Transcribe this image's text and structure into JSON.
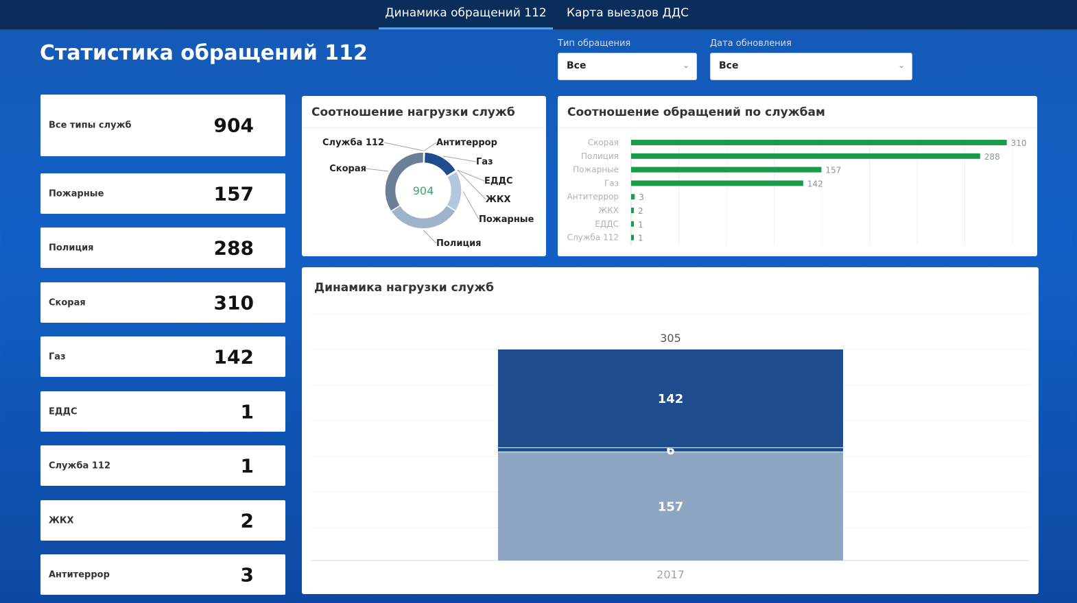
{
  "tabs": [
    {
      "label": "Динамика обращений 112",
      "active": true
    },
    {
      "label": "Карта выездов ДДС",
      "active": false
    }
  ],
  "page_title": "Статистика обращений 112",
  "filters": {
    "type": {
      "label": "Тип обращения",
      "value": "Все"
    },
    "date": {
      "label": "Дата обновления",
      "value": "Все"
    }
  },
  "stats": [
    {
      "label": "Все типы служб",
      "value": "904"
    },
    {
      "label": "Пожарные",
      "value": "157"
    },
    {
      "label": "Полиция",
      "value": "288"
    },
    {
      "label": "Скорая",
      "value": "310"
    },
    {
      "label": "Газ",
      "value": "142"
    },
    {
      "label": "ЕДДС",
      "value": "1"
    },
    {
      "label": "Служба 112",
      "value": "1"
    },
    {
      "label": "ЖКХ",
      "value": "2"
    },
    {
      "label": "Антитеррор",
      "value": "3"
    }
  ],
  "colors": {
    "accent_green": "#1a9a4a",
    "dark_blue": "#1f4c8f",
    "light_blue": "#8ea5c4",
    "nav_bg": "#0b2d5c"
  },
  "chart_data": [
    {
      "type": "pie",
      "title": "Соотношение нагрузки служб",
      "center_label": "904",
      "slices": [
        {
          "label": "Скорая",
          "value": 310,
          "color": "#6b8098"
        },
        {
          "label": "Полиция",
          "value": 288,
          "color": "#9fb3c9"
        },
        {
          "label": "Пожарные",
          "value": 157,
          "color": "#b5c7dc"
        },
        {
          "label": "Газ",
          "value": 142,
          "color": "#1f4c8f"
        },
        {
          "label": "Антитеррор",
          "value": 3,
          "color": "#3aa86b"
        },
        {
          "label": "ЖКХ",
          "value": 2,
          "color": "#4b88c8"
        },
        {
          "label": "ЕДДС",
          "value": 1,
          "color": "#5a6f86"
        },
        {
          "label": "Служба 112",
          "value": 1,
          "color": "#8fd0a8"
        }
      ]
    },
    {
      "type": "bar",
      "orientation": "horizontal",
      "title": "Соотношение обращений по службам",
      "categories": [
        "Скорая",
        "Полиция",
        "Пожарные",
        "Газ",
        "Антитеррор",
        "ЖКХ",
        "ЕДДС",
        "Служба 112"
      ],
      "values": [
        310,
        288,
        157,
        142,
        3,
        2,
        1,
        1
      ],
      "color": "#1a9a4a",
      "grid": true
    },
    {
      "type": "bar",
      "stacked": true,
      "title": "Динамика нагрузки служб",
      "categories": [
        "2017"
      ],
      "total_label": "305",
      "series": [
        {
          "values": [
            157
          ],
          "color": "#8ea5c4",
          "label": "157"
        },
        {
          "values": [
            6
          ],
          "color": "#1f4c8f",
          "label": "6"
        },
        {
          "values": [
            142
          ],
          "color": "#1f4c8f",
          "label": "142"
        }
      ],
      "grid": true
    }
  ]
}
